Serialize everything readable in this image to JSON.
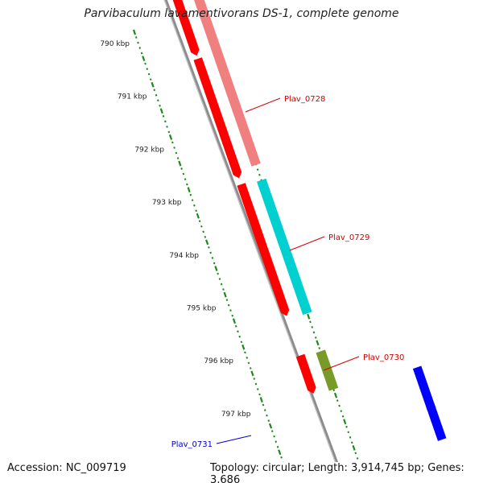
{
  "title": "Parvibaculum lavamentivorans DS-1, complete genome",
  "footer": {
    "accession": "Accession: NC_009719",
    "topology": "Topology: circular; Length: 3,914,745 bp; Genes: 3,686"
  },
  "colors": {
    "tick": "#1a8a1a",
    "backbone": "#8c8c8c",
    "label_red": "#d40000",
    "label_blue": "#0000cc"
  },
  "scale": {
    "unit": "kbp",
    "ticks": [
      {
        "label": "790 kbp"
      },
      {
        "label": "791 kbp"
      },
      {
        "label": "792 kbp"
      },
      {
        "label": "793 kbp"
      },
      {
        "label": "794 kbp"
      },
      {
        "label": "795 kbp"
      },
      {
        "label": "796 kbp"
      },
      {
        "label": "797 kbp"
      }
    ]
  },
  "genes": [
    {
      "name": "Plav_0728",
      "color": "#ff0000",
      "label_color": "#d40000"
    },
    {
      "name": "Plav_0729",
      "color": "#ff0000",
      "label_color": "#d40000"
    },
    {
      "name": "Plav_0730",
      "color": "#ff0000",
      "label_color": "#d40000"
    },
    {
      "name": "Plav_0731",
      "color": "#0000ff",
      "label_color": "#0000cc"
    }
  ],
  "features": [
    {
      "color": "#f08080"
    },
    {
      "color": "#00d0d0"
    },
    {
      "color": "#7a9a28"
    },
    {
      "color": "#0000ff"
    }
  ]
}
